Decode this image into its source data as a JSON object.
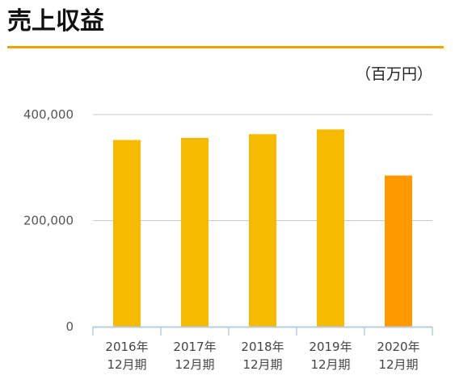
{
  "page": {
    "title": "売上収益",
    "unit": "（百万円）"
  },
  "colors": {
    "accent": "#f2a200",
    "bar": "#f6bb00",
    "bar_highlight": "#ff9900",
    "grid": "#c8c8c8",
    "axis": "#b9cde0"
  },
  "chart_data": {
    "type": "bar",
    "title": "",
    "xlabel": "",
    "ylabel": "",
    "ylim": [
      0,
      400000
    ],
    "yticks": [
      {
        "value": 0,
        "label": "0"
      },
      {
        "value": 200000,
        "label": "200,000"
      },
      {
        "value": 400000,
        "label": "400,000"
      }
    ],
    "categories": [
      [
        "2016年",
        "12月期"
      ],
      [
        "2017年",
        "12月期"
      ],
      [
        "2018年",
        "12月期"
      ],
      [
        "2019年",
        "12月期"
      ],
      [
        "2020年",
        "12月期"
      ]
    ],
    "values": [
      352000,
      356000,
      363000,
      372000,
      285000
    ],
    "highlight_index": 4,
    "grid": true
  }
}
